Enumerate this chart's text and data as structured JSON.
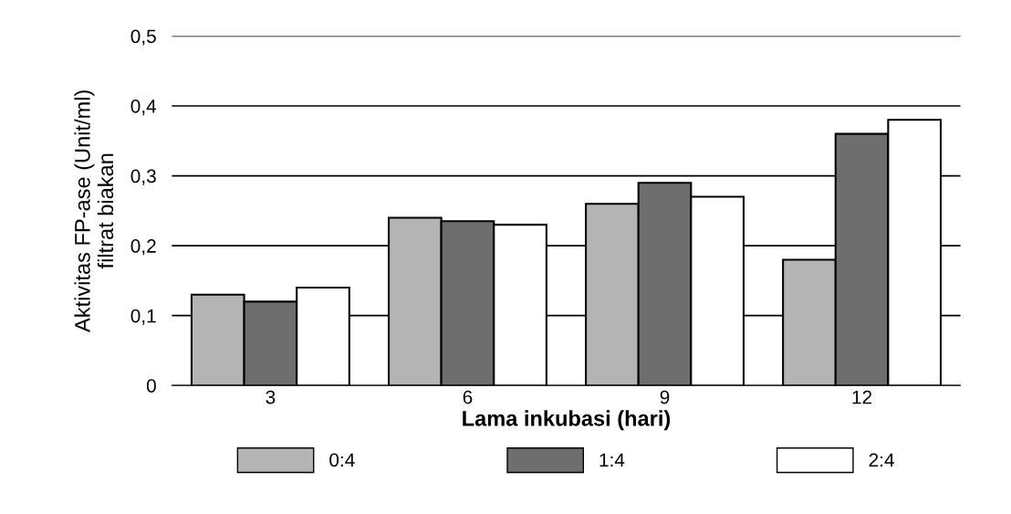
{
  "chart_data": {
    "type": "bar",
    "xlabel": "Lama inkubasi (hari)",
    "ylabel": "Aktivitas FP-ase (Unit/ml)\nfiltrat biakan",
    "categories": [
      "3",
      "6",
      "9",
      "12"
    ],
    "series": [
      {
        "name": "0:4",
        "color": "#b4b4b4",
        "values": [
          0.13,
          0.24,
          0.26,
          0.18
        ]
      },
      {
        "name": "1:4",
        "color": "#6e6e6e",
        "values": [
          0.12,
          0.235,
          0.29,
          0.36
        ]
      },
      {
        "name": "2:4",
        "color": "#ffffff",
        "values": [
          0.14,
          0.23,
          0.27,
          0.38
        ]
      }
    ],
    "ylim": [
      0,
      0.5
    ],
    "yticks": [
      {
        "value": 0,
        "label": "0"
      },
      {
        "value": 0.1,
        "label": "0,1"
      },
      {
        "value": 0.2,
        "label": "0,2"
      },
      {
        "value": 0.3,
        "label": "0,3"
      },
      {
        "value": 0.4,
        "label": "0,4"
      },
      {
        "value": 0.5,
        "label": "0,5"
      }
    ],
    "grid": "y",
    "legend": "bottom"
  }
}
